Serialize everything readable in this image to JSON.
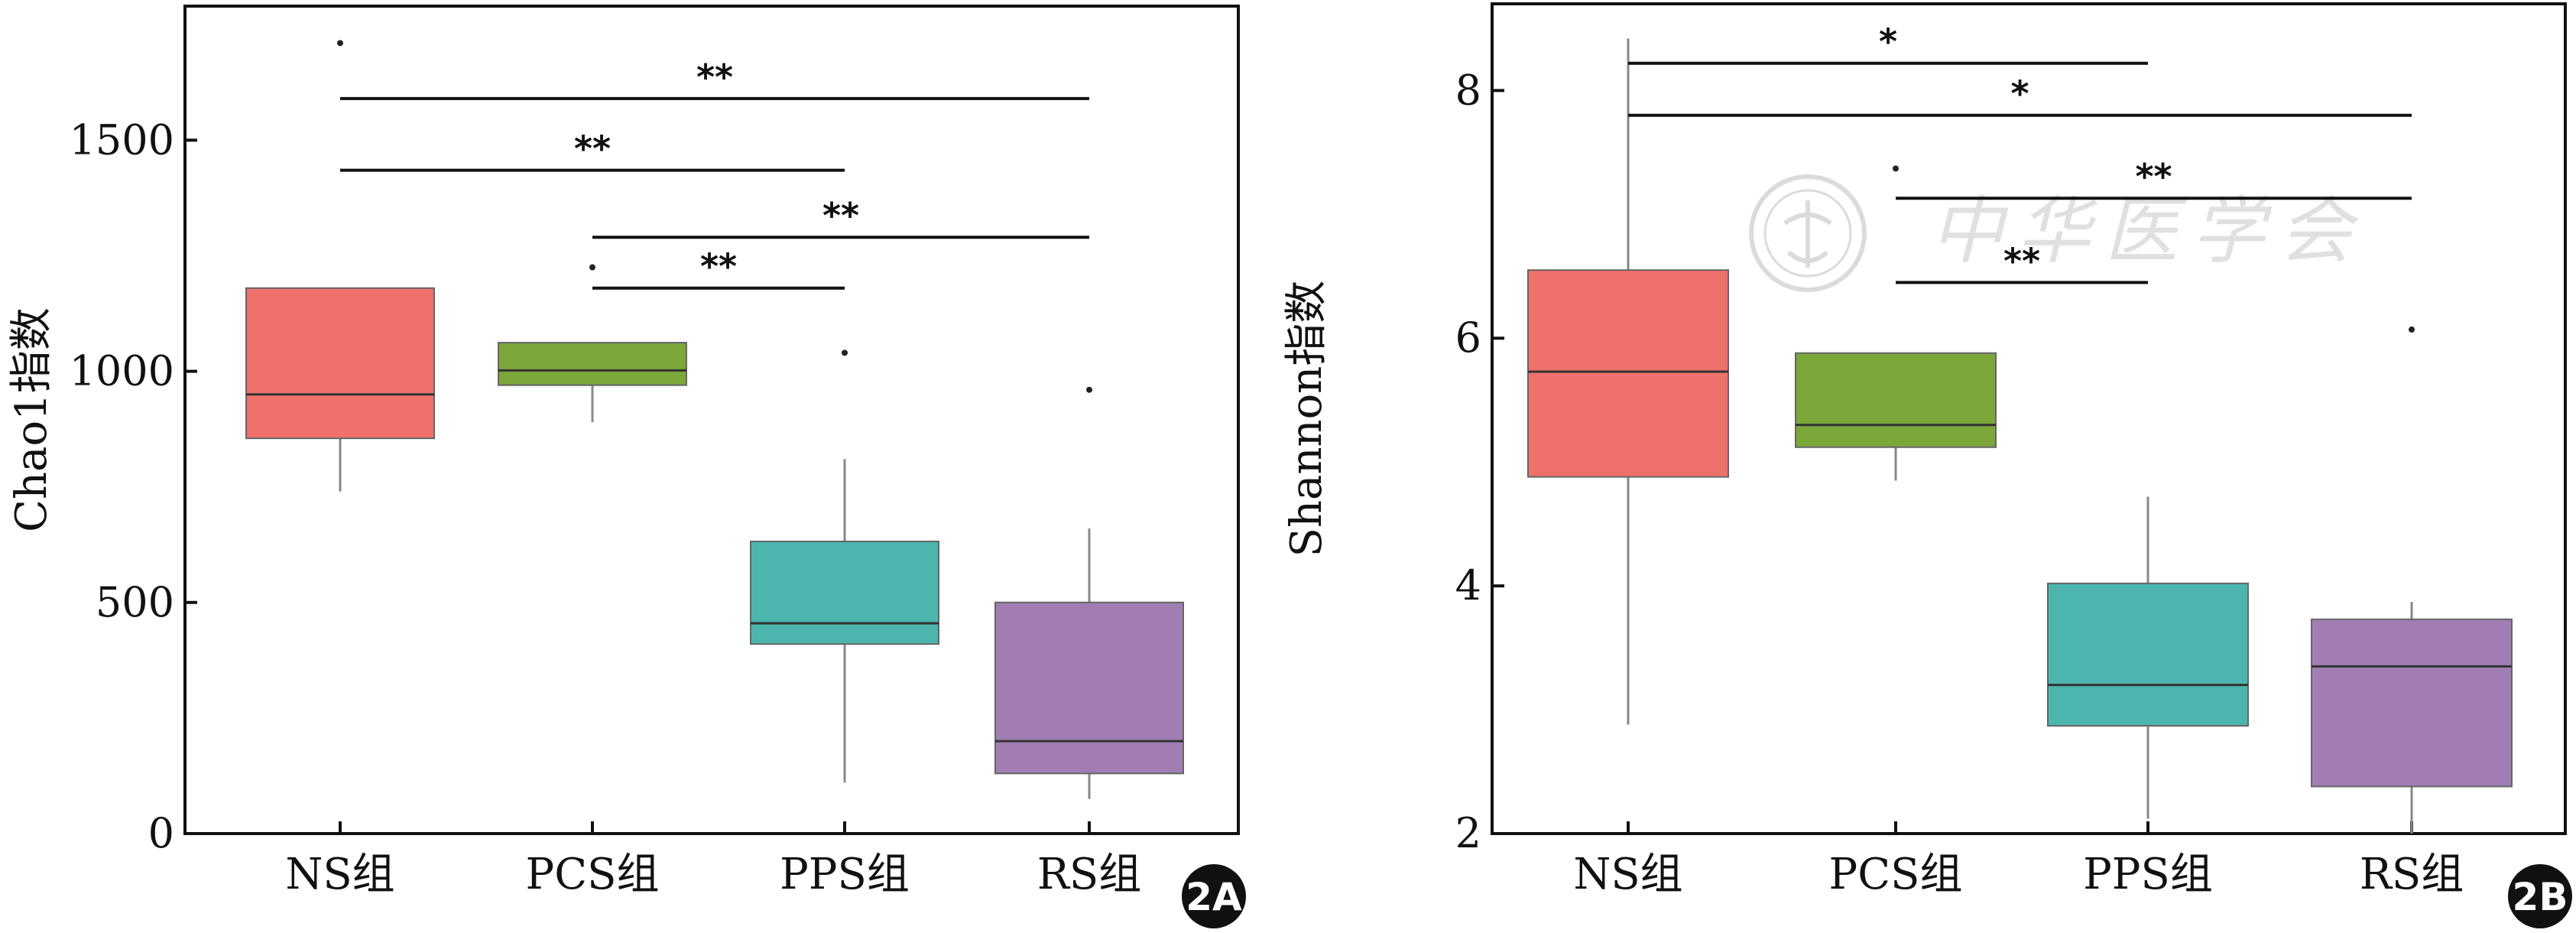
{
  "chart_data": [
    {
      "type": "box",
      "panel_label": "2A",
      "ylabel": "Chao1指数",
      "ylim": [
        0,
        1790
      ],
      "yticks": [
        0,
        500,
        1000,
        1500
      ],
      "categories": [
        "NS组",
        "PCS组",
        "PPS组",
        "RS组"
      ],
      "colors": [
        "#ee716c",
        "#7aa63a",
        "#4bb5ae",
        "#a07db3"
      ],
      "boxes": [
        {
          "min": 740,
          "q1": 855,
          "median": 950,
          "q3": 1180,
          "max": 1180,
          "outliers": [
            1710
          ]
        },
        {
          "min": 890,
          "q1": 970,
          "median": 1002,
          "q3": 1062,
          "max": 1062,
          "outliers": [
            1225
          ]
        },
        {
          "min": 110,
          "q1": 410,
          "median": 455,
          "q3": 632,
          "max": 810,
          "outliers": [
            1040
          ]
        },
        {
          "min": 75,
          "q1": 130,
          "median": 200,
          "q3": 500,
          "max": 660,
          "outliers": [
            960
          ]
        }
      ],
      "significance": [
        {
          "from": 0,
          "to": 3,
          "y": 1590,
          "label": "**"
        },
        {
          "from": 0,
          "to": 2,
          "y": 1435,
          "label": "**"
        },
        {
          "from": 1,
          "to": 3,
          "y": 1290,
          "label": "**"
        },
        {
          "from": 1,
          "to": 2,
          "y": 1180,
          "label": "**"
        }
      ]
    },
    {
      "type": "box",
      "panel_label": "2B",
      "ylabel": "Shannon指数",
      "ylim": [
        2,
        8.7
      ],
      "yticks": [
        2,
        4,
        6,
        8
      ],
      "categories": [
        "NS组",
        "PCS组",
        "PPS组",
        "RS组"
      ],
      "colors": [
        "#ee716c",
        "#7aa63a",
        "#4bb5ae",
        "#a07db3"
      ],
      "boxes": [
        {
          "min": 2.88,
          "q1": 4.88,
          "median": 5.73,
          "q3": 6.55,
          "max": 8.42,
          "outliers": []
        },
        {
          "min": 4.85,
          "q1": 5.12,
          "median": 5.3,
          "q3": 5.88,
          "max": 5.88,
          "outliers": [
            7.37
          ]
        },
        {
          "min": 2.12,
          "q1": 2.87,
          "median": 3.2,
          "q3": 4.02,
          "max": 4.72,
          "outliers": []
        },
        {
          "min": 2.0,
          "q1": 2.38,
          "median": 3.35,
          "q3": 3.73,
          "max": 3.87,
          "outliers": [
            6.07
          ]
        }
      ],
      "significance": [
        {
          "from": 0,
          "to": 2,
          "y": 8.22,
          "label": "*"
        },
        {
          "from": 0,
          "to": 3,
          "y": 7.8,
          "label": "*"
        },
        {
          "from": 1,
          "to": 3,
          "y": 7.13,
          "label": "**"
        },
        {
          "from": 1,
          "to": 2,
          "y": 6.45,
          "label": "**"
        }
      ]
    }
  ],
  "watermark": {
    "text": "中华医学会"
  }
}
